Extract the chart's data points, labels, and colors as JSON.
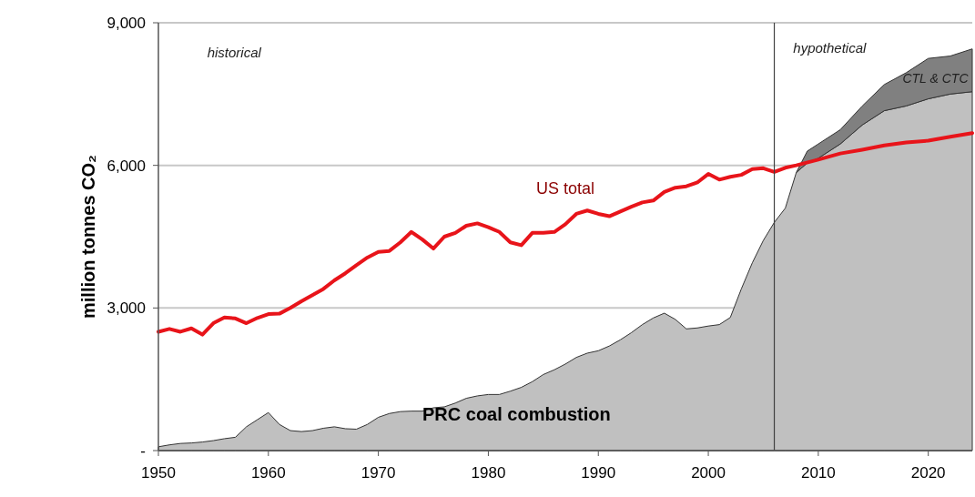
{
  "chart_data": {
    "type": "area",
    "ylabel": "million tonnes CO₂",
    "stacked": true,
    "grid": "y",
    "xlim": [
      1950,
      2024
    ],
    "xticks": [
      1950,
      1960,
      1970,
      1980,
      1990,
      2000,
      2010,
      2020
    ],
    "ylim": [
      0,
      9000
    ],
    "yticks": [
      {
        "value": 0,
        "label": "-"
      },
      {
        "value": 3000,
        "label": "3,000"
      },
      {
        "value": 6000,
        "label": "6,000"
      },
      {
        "value": 9000,
        "label": "9,000"
      }
    ],
    "x": [
      1950,
      1951,
      1952,
      1953,
      1954,
      1955,
      1956,
      1957,
      1958,
      1959,
      1960,
      1961,
      1962,
      1963,
      1964,
      1965,
      1966,
      1967,
      1968,
      1969,
      1970,
      1971,
      1972,
      1973,
      1974,
      1975,
      1976,
      1977,
      1978,
      1979,
      1980,
      1981,
      1982,
      1983,
      1984,
      1985,
      1986,
      1987,
      1988,
      1989,
      1990,
      1991,
      1992,
      1993,
      1994,
      1995,
      1996,
      1997,
      1998,
      1999,
      2000,
      2001,
      2002,
      2003,
      2004,
      2005,
      2006,
      2007,
      2008,
      2009,
      2010,
      2012,
      2014,
      2016,
      2018,
      2020,
      2022,
      2024
    ],
    "series": [
      {
        "name": "PRC coal combustion",
        "color": "#c0c0c0",
        "values": [
          80,
          120,
          150,
          160,
          180,
          210,
          250,
          280,
          500,
          650,
          800,
          550,
          420,
          400,
          420,
          470,
          500,
          460,
          450,
          550,
          700,
          780,
          820,
          830,
          830,
          900,
          920,
          1000,
          1100,
          1150,
          1180,
          1180,
          1250,
          1330,
          1450,
          1600,
          1700,
          1820,
          1960,
          2050,
          2100,
          2200,
          2330,
          2480,
          2650,
          2790,
          2890,
          2760,
          2560,
          2580,
          2620,
          2650,
          2800,
          3400,
          3950,
          4420,
          4800,
          5100,
          5850,
          6050,
          6150,
          6450,
          6850,
          7150,
          7250,
          7400,
          7500,
          7550
        ]
      },
      {
        "name": "CTL & CTC",
        "color": "#808080",
        "values": [
          null,
          null,
          null,
          null,
          null,
          null,
          null,
          null,
          null,
          null,
          null,
          null,
          null,
          null,
          null,
          null,
          null,
          null,
          null,
          null,
          null,
          null,
          null,
          null,
          null,
          null,
          null,
          null,
          null,
          null,
          null,
          null,
          null,
          null,
          null,
          null,
          null,
          null,
          null,
          null,
          null,
          null,
          null,
          null,
          null,
          null,
          null,
          null,
          null,
          null,
          null,
          null,
          null,
          null,
          null,
          null,
          null,
          null,
          0,
          250,
          300,
          300,
          400,
          550,
          700,
          850,
          800,
          900
        ]
      },
      {
        "name": "US total",
        "type": "line",
        "color": "#e8141a",
        "x": [
          1950,
          1951,
          1952,
          1953,
          1954,
          1955,
          1956,
          1957,
          1958,
          1959,
          1960,
          1961,
          1962,
          1963,
          1964,
          1965,
          1966,
          1967,
          1968,
          1969,
          1970,
          1971,
          1972,
          1973,
          1974,
          1975,
          1976,
          1977,
          1978,
          1979,
          1980,
          1981,
          1982,
          1983,
          1984,
          1985,
          1986,
          1987,
          1988,
          1989,
          1990,
          1991,
          1992,
          1993,
          1994,
          1995,
          1996,
          1997,
          1998,
          1999,
          2000,
          2001,
          2002,
          2003,
          2004,
          2005,
          2006,
          2007,
          2008,
          2010,
          2012,
          2014,
          2016,
          2018,
          2020,
          2022,
          2024
        ],
        "values": [
          2500,
          2560,
          2500,
          2570,
          2440,
          2680,
          2800,
          2780,
          2680,
          2790,
          2870,
          2880,
          3000,
          3140,
          3270,
          3400,
          3580,
          3730,
          3900,
          4060,
          4180,
          4200,
          4380,
          4600,
          4440,
          4250,
          4500,
          4580,
          4730,
          4780,
          4700,
          4600,
          4380,
          4320,
          4580,
          4580,
          4600,
          4760,
          4980,
          5050,
          4980,
          4930,
          5030,
          5130,
          5220,
          5260,
          5440,
          5530,
          5560,
          5640,
          5820,
          5700,
          5760,
          5800,
          5920,
          5940,
          5860,
          5950,
          6000,
          6120,
          6250,
          6330,
          6420,
          6480,
          6520,
          6600,
          6680
        ]
      }
    ],
    "ref_lines": [
      {
        "axis": "x",
        "value": 2006,
        "color": "#404040"
      }
    ],
    "annotations": [
      "historical",
      "hypothetical"
    ]
  }
}
